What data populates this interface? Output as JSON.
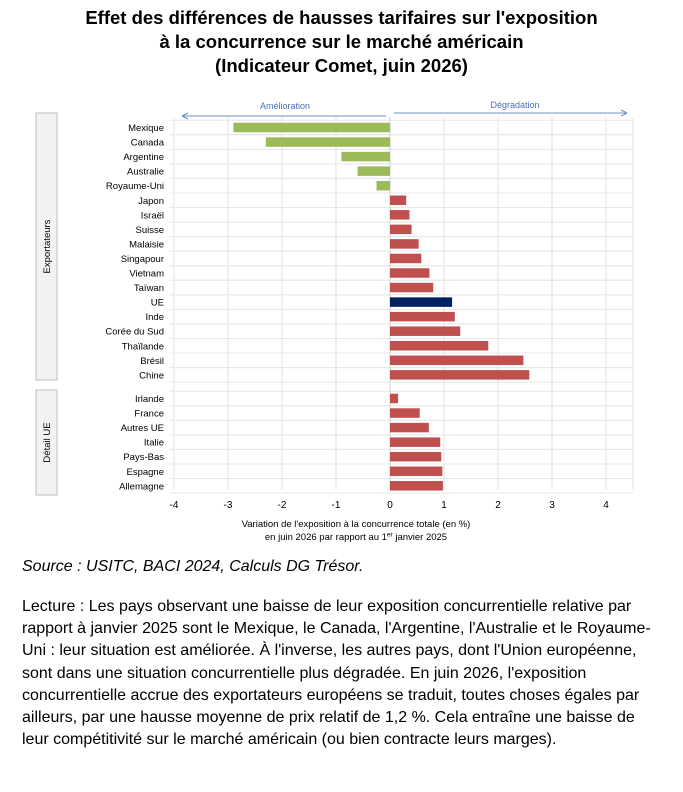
{
  "title": {
    "line1": "Effet des différences de hausses tarifaires sur l'exposition",
    "line2": "à la concurrence sur le marché américain",
    "line3": "(Indicateur Comet, juin 2026)"
  },
  "chart_data": {
    "type": "bar",
    "orientation": "horizontal",
    "direction_labels": {
      "left": "Amélioration",
      "right": "Dégradation"
    },
    "xlabel_line1": "Variation de l'exposition à la concurrence totale (en %)",
    "xlabel_line2_pre": "en juin 2026 par rapport au 1",
    "xlabel_line2_sup": "er",
    "xlabel_line2_post": " janvier 2025",
    "xlim": [
      -4,
      4.5
    ],
    "xticks": [
      "-4",
      "-3",
      "-2",
      "-1",
      "0",
      "1",
      "2",
      "3",
      "4"
    ],
    "grid": true,
    "colors": {
      "improvement": "#9bbb59",
      "degradation": "#c0504d",
      "highlight": "#002060"
    },
    "groups": [
      {
        "label": "Exportateurs",
        "categories": [
          "Mexique",
          "Canada",
          "Argentine",
          "Australie",
          "Royaume-Uni",
          "Japon",
          "Israël",
          "Suisse",
          "Malaisie",
          "Singapour",
          "Vietnam",
          "Taïwan",
          "UE",
          "Inde",
          "Corée du Sud",
          "Thaïlande",
          "Brésil",
          "Chine"
        ],
        "values": [
          -2.9,
          -2.3,
          -0.9,
          -0.6,
          -0.25,
          0.3,
          0.36,
          0.4,
          0.53,
          0.58,
          0.73,
          0.8,
          1.15,
          1.2,
          1.3,
          1.82,
          2.47,
          2.58
        ],
        "highlight": "UE"
      },
      {
        "label": "Détail UE",
        "categories": [
          "Irlande",
          "France",
          "Autres UE",
          "Italie",
          "Pays-Bas",
          "Espagne",
          "Allemagne"
        ],
        "values": [
          0.15,
          0.55,
          0.72,
          0.93,
          0.95,
          0.97,
          0.98
        ]
      }
    ]
  },
  "source": "Source : USITC, BACI 2024, Calculs DG Trésor.",
  "note": "Lecture : Les pays observant une baisse de leur exposition concurrentielle relative par rapport à janvier 2025 sont le Mexique, le Canada, l'Argentine, l'Australie et le Royaume-Uni : leur situation est améliorée. À l'inverse, les autres pays, dont l'Union européenne, sont dans une situation concurrentielle plus dégradée. En juin 2026, l'exposition concurrentielle accrue des exportateurs européens se traduit, toutes choses égales par ailleurs, par une hausse moyenne de prix relatif de 1,2 %. Cela entraîne une baisse de leur compétitivité sur le marché américain (ou bien contracte leurs marges)."
}
